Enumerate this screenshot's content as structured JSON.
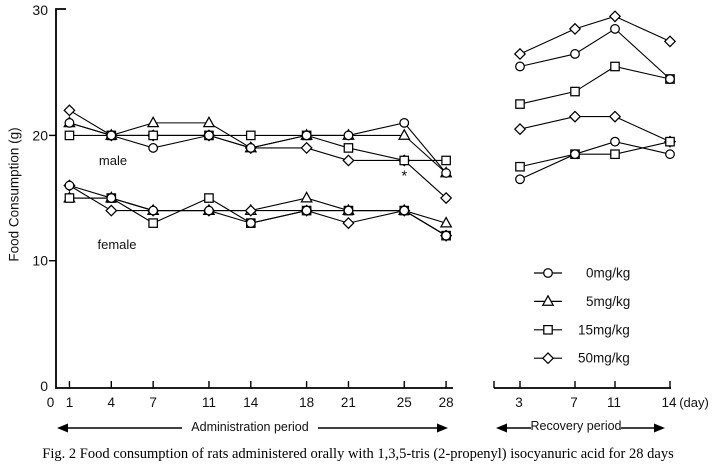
{
  "figure": {
    "caption": "Fig. 2  Food consumption of rats administered orally with 1,3,5-tris (2-propenyl) isocyanuric acid for 28 days",
    "y_axis": {
      "label": "Food Consumption (g)",
      "tick_labels": [
        "0",
        "10",
        "20",
        "30"
      ],
      "range": [
        0,
        30
      ]
    },
    "x_axis": {
      "administration": {
        "tick_labels": [
          "0",
          "1",
          "4",
          "7",
          "11",
          "14",
          "18",
          "21",
          "25",
          "28"
        ],
        "tick_days": [
          0,
          1,
          4,
          7,
          11,
          14,
          18,
          21,
          25,
          28
        ],
        "arrow_label": "Administration period"
      },
      "recovery": {
        "tick_labels": [
          "3",
          "7",
          "11",
          "14"
        ],
        "tick_days": [
          3,
          7,
          11,
          14
        ],
        "unit_label": "(day)",
        "arrow_label": "Recovery period"
      }
    },
    "group_labels": {
      "male": "male",
      "female": "female"
    },
    "legend": [
      {
        "marker": "circle",
        "label": "0mg/kg"
      },
      {
        "marker": "triangle",
        "label": "5mg/kg"
      },
      {
        "marker": "square",
        "label": "15mg/kg"
      },
      {
        "marker": "diamond",
        "label": "50mg/kg"
      }
    ],
    "annotation_text": "*",
    "line_color": "#000000"
  },
  "chart_data": {
    "type": "line",
    "title": "Fig. 2  Food consumption of rats administered orally with 1,3,5-tris (2-propenyl) isocyanuric acid for 28 days",
    "ylabel": "Food Consumption (g)",
    "ylim": [
      0,
      30
    ],
    "grid": false,
    "legend_position": "lower right of recovery panel",
    "administration_days": [
      1,
      4,
      7,
      11,
      14,
      18,
      21,
      25,
      28
    ],
    "recovery_days": [
      3,
      7,
      11,
      14
    ],
    "series": [
      {
        "sex": "male",
        "dose": "0mg/kg",
        "marker": "circle",
        "administration": [
          21,
          20,
          19,
          20,
          19,
          20,
          20,
          21,
          17
        ],
        "recovery": [
          25.5,
          26.5,
          28.5,
          24.5
        ]
      },
      {
        "sex": "male",
        "dose": "5mg/kg",
        "marker": "triangle",
        "administration": [
          21,
          20,
          21,
          21,
          19,
          20,
          20,
          20,
          17
        ],
        "recovery": null
      },
      {
        "sex": "male",
        "dose": "15mg/kg",
        "marker": "square",
        "administration": [
          20,
          20,
          20,
          20,
          20,
          20,
          19,
          18,
          18
        ],
        "recovery": [
          22.5,
          23.5,
          25.5,
          24.5
        ]
      },
      {
        "sex": "male",
        "dose": "50mg/kg",
        "marker": "diamond",
        "administration": [
          22,
          20,
          20,
          20,
          19,
          19,
          18,
          18,
          15
        ],
        "recovery": [
          26.5,
          28.5,
          29.5,
          27.5
        ]
      },
      {
        "sex": "female",
        "dose": "0mg/kg",
        "marker": "circle",
        "administration": [
          16,
          15,
          14,
          14,
          13,
          14,
          14,
          14,
          12
        ],
        "recovery": [
          16.5,
          18.5,
          19.5,
          18.5
        ]
      },
      {
        "sex": "female",
        "dose": "5mg/kg",
        "marker": "triangle",
        "administration": [
          15,
          15,
          14,
          14,
          14,
          15,
          14,
          14,
          13
        ],
        "recovery": null
      },
      {
        "sex": "female",
        "dose": "15mg/kg",
        "marker": "square",
        "administration": [
          15,
          15,
          13,
          15,
          13,
          14,
          14,
          14,
          12
        ],
        "recovery": [
          17.5,
          18.5,
          18.5,
          19.5
        ]
      },
      {
        "sex": "female",
        "dose": "50mg/kg",
        "marker": "diamond",
        "administration": [
          16,
          14,
          14,
          14,
          14,
          14,
          13,
          14,
          12
        ],
        "recovery": [
          20.5,
          21.5,
          21.5,
          19.5
        ]
      }
    ],
    "annotations": [
      {
        "text": "*",
        "sex": "male",
        "dose": "15mg/kg",
        "period": "administration",
        "day": 25,
        "value": 18
      }
    ]
  }
}
